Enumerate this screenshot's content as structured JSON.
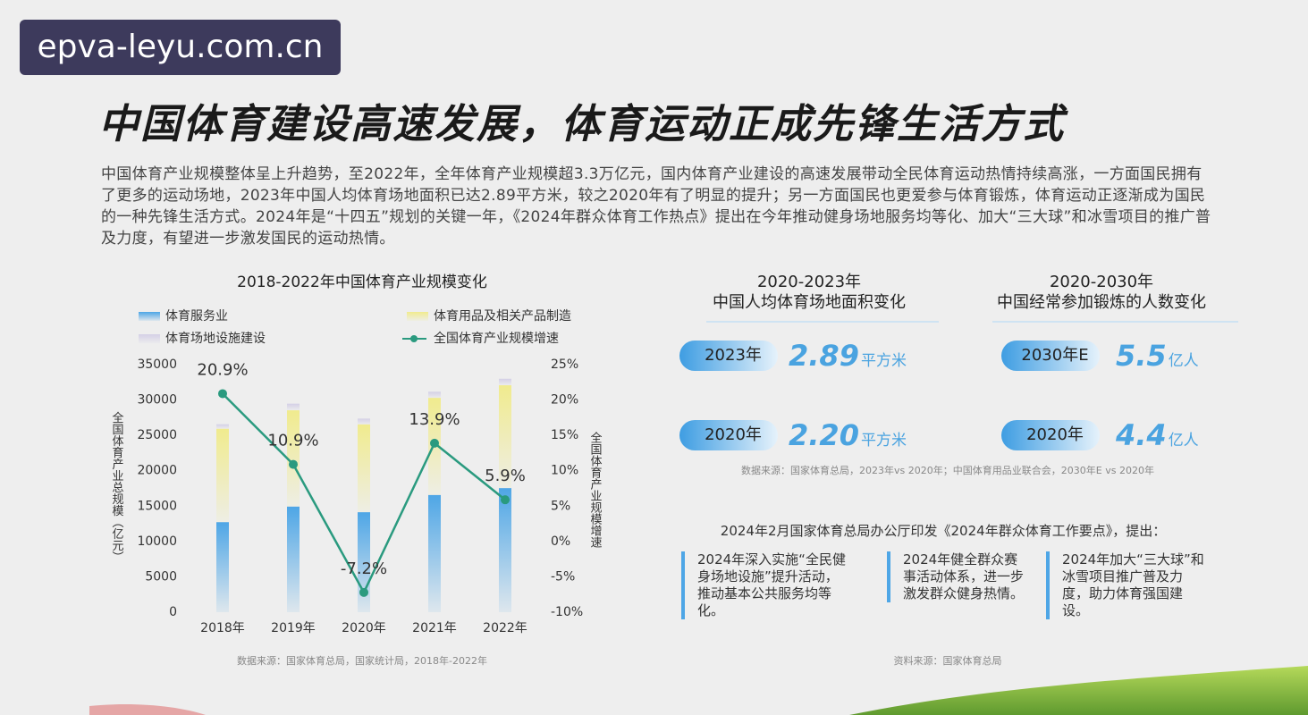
{
  "watermark": "epva-leyu.com.cn",
  "header": {
    "title": "中国体育建设高速发展，体育运动正成先锋生活方式",
    "intro": "中国体育产业规模整体呈上升趋势，至2022年，全年体育产业规模超3.3万亿元，国内体育产业建设的高速发展带动全民体育运动热情持续高涨，一方面国民拥有了更多的运动场地，2023年中国人均体育场地面积已达2.89平方米，较之2020年有了明显的提升；另一方面国民也更爱参与体育锻炼，体育运动正逐渐成为国民的一种先锋生活方式。2024年是“十四五”规划的关键一年，《2024年群众体育工作热点》提出在今年推动健身场地服务均等化、加大“三大球”和冰雪项目的推广普及力度，有望进一步激发国民的运动热情。"
  },
  "chart_data": {
    "type": "bar",
    "stacked": true,
    "title": "2018-2022年中国体育产业规模变化",
    "y_label": "全国体育产业总规模（亿元）",
    "y2_label": "全国体育产业规模增速",
    "categories": [
      "2018年",
      "2019年",
      "2020年",
      "2021年",
      "2022年"
    ],
    "series": [
      {
        "name": "体育服务业",
        "color": "#4ea6e6",
        "values": [
          12732,
          14930,
          14136,
          16566,
          17544
        ]
      },
      {
        "name": "体育用品及相关产品制造",
        "color": "#f0eb8e",
        "values": [
          13201,
          13615,
          12412,
          13738,
          14543
        ]
      },
      {
        "name": "体育场地设施建设",
        "color": "#d4d0e6",
        "values": [
          646,
          938,
          824,
          871,
          921
        ]
      },
      {
        "name": "全国体育产业规模增速",
        "color": "#2a9a7f",
        "type": "line",
        "axis": "y2",
        "values": [
          20.9,
          10.9,
          -7.2,
          13.9,
          5.9
        ],
        "value_labels": [
          "20.9%",
          "10.9%",
          "-7.2%",
          "13.9%",
          "5.9%"
        ]
      }
    ],
    "ylim": [
      0,
      35000
    ],
    "yticks": [
      0,
      5000,
      10000,
      15000,
      20000,
      25000,
      30000,
      35000
    ],
    "y2lim": [
      -10,
      25
    ],
    "y2ticks": [
      {
        "value": -10,
        "label": "-10%"
      },
      {
        "value": -5,
        "label": "-5%"
      },
      {
        "value": 0,
        "label": "0%"
      },
      {
        "value": 5,
        "label": "5%"
      },
      {
        "value": 10,
        "label": "10%"
      },
      {
        "value": 15,
        "label": "15%"
      },
      {
        "value": 20,
        "label": "20%"
      },
      {
        "value": 25,
        "label": "25%"
      }
    ],
    "source": "数据来源：国家体育总局，国家统计局，2018年-2022年"
  },
  "stats": [
    {
      "period": "2020-2023年",
      "subtitle": "中国人均体育场地面积变化",
      "rows": [
        {
          "label": "2023年",
          "value": "2.89",
          "unit": "平方米"
        },
        {
          "label": "2020年",
          "value": "2.20",
          "unit": "平方米"
        }
      ]
    },
    {
      "period": "2020-2030年",
      "subtitle": "中国经常参加锻炼的人数变化",
      "rows": [
        {
          "label": "2030年E",
          "value": "5.5",
          "unit": "亿人"
        },
        {
          "label": "2020年",
          "value": "4.4",
          "unit": "亿人"
        }
      ]
    }
  ],
  "stats_source": "数据来源：国家体育总局，2023年vs 2020年；中国体育用品业联合会，2030年E vs 2020年",
  "policy": {
    "intro": "2024年2月国家体育总局办公厅印发《2024年群众体育工作要点》，提出：",
    "items": [
      "2024年深入实施“全民健身场地设施”提升活动，推动基本公共服务均等化。",
      "2024年健全群众赛事活动体系，进一步激发群众健身热情。",
      "2024年加大“三大球”和冰雪项目推广普及力度，助力体育强国建设。"
    ],
    "source": "资料来源：国家体育总局"
  }
}
